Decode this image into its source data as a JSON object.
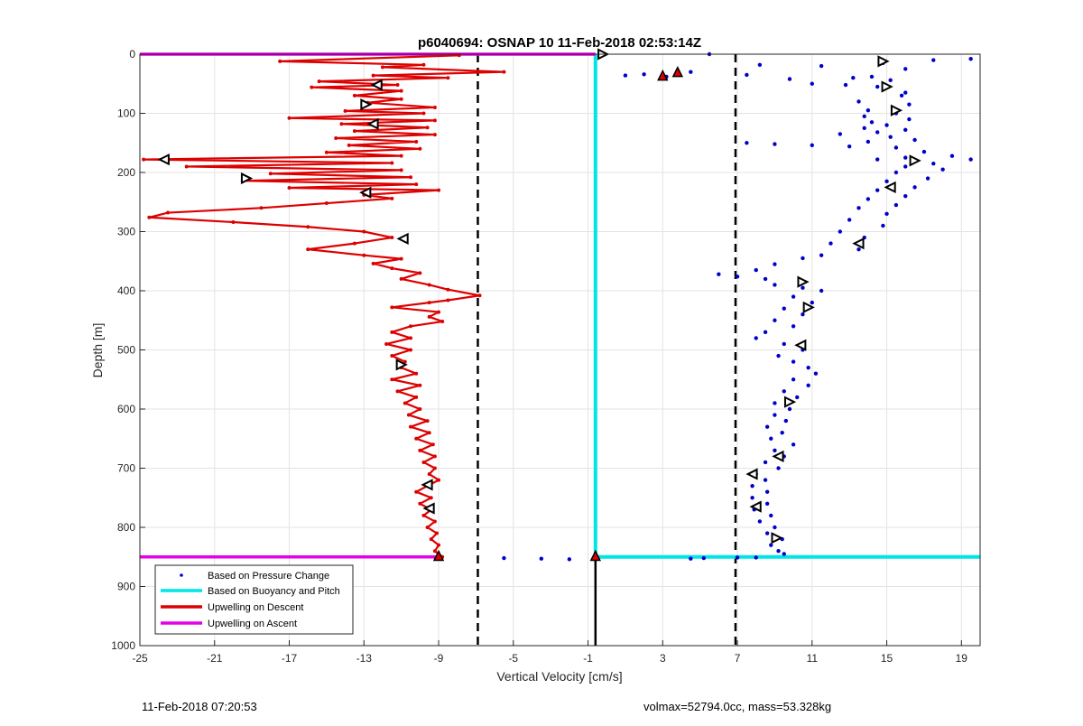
{
  "chart_data": {
    "type": "line",
    "title": "p6040694: OSNAP 10 11-Feb-2018 02:53:14Z",
    "xlabel": "Vertical Velocity [cm/s]",
    "ylabel": "Depth [m]",
    "xlim": [
      -25,
      20
    ],
    "ylim": [
      0,
      1000
    ],
    "y_reversed": true,
    "grid": true,
    "xticks": [
      -25,
      -21,
      -17,
      -13,
      -9,
      -5,
      -1,
      3,
      7,
      11,
      15,
      19
    ],
    "yticks": [
      0,
      100,
      200,
      300,
      400,
      500,
      600,
      700,
      800,
      900,
      1000
    ],
    "legend_position": "bottom-left",
    "legend": [
      {
        "label": "Based on Pressure Change",
        "color": "#0000cc",
        "style": "dots"
      },
      {
        "label": "Based on Buoyancy and Pitch",
        "color": "#00e5e5",
        "style": "line"
      },
      {
        "label": "Upwelling on Descent",
        "color": "#dd0000",
        "style": "line"
      },
      {
        "label": "Upwelling on Ascent",
        "color": "#e600e6",
        "style": "line"
      }
    ],
    "reference_lines": {
      "dashed_x": [
        -6.9,
        6.9
      ],
      "zero_x": -0.6,
      "bottom_depth": 850,
      "ascent_top_depth": 0
    },
    "series": [
      {
        "name": "Upwelling on Descent",
        "color": "#dd0000",
        "points": [
          [
            -7.9,
            2
          ],
          [
            -17.5,
            12
          ],
          [
            -9.8,
            18
          ],
          [
            -12.0,
            22
          ],
          [
            -5.5,
            30
          ],
          [
            -12.5,
            36
          ],
          [
            -8.5,
            40
          ],
          [
            -15.4,
            46
          ],
          [
            -11.2,
            52
          ],
          [
            -15.8,
            56
          ],
          [
            -11.0,
            62
          ],
          [
            -13.5,
            70
          ],
          [
            -11.0,
            76
          ],
          [
            -12.8,
            82
          ],
          [
            -9.2,
            90
          ],
          [
            -14.0,
            96
          ],
          [
            -9.8,
            100
          ],
          [
            -17.0,
            108
          ],
          [
            -9.2,
            112
          ],
          [
            -14.2,
            118
          ],
          [
            -9.6,
            124
          ],
          [
            -13.5,
            130
          ],
          [
            -9.2,
            136
          ],
          [
            -14.5,
            142
          ],
          [
            -10.2,
            148
          ],
          [
            -13.8,
            154
          ],
          [
            -10.0,
            160
          ],
          [
            -15.0,
            166
          ],
          [
            -11.0,
            172
          ],
          [
            -24.8,
            178
          ],
          [
            -11.5,
            184
          ],
          [
            -22.5,
            190
          ],
          [
            -11.0,
            196
          ],
          [
            -18.0,
            202
          ],
          [
            -10.5,
            208
          ],
          [
            -19.5,
            214
          ],
          [
            -10.2,
            220
          ],
          [
            -17.0,
            226
          ],
          [
            -9.0,
            230
          ],
          [
            -13.0,
            238
          ],
          [
            -11.5,
            244
          ],
          [
            -15.0,
            252
          ],
          [
            -18.5,
            260
          ],
          [
            -23.5,
            268
          ],
          [
            -24.5,
            276
          ],
          [
            -20.0,
            284
          ],
          [
            -16.0,
            292
          ],
          [
            -13.0,
            300
          ],
          [
            -11.5,
            310
          ],
          [
            -13.5,
            320
          ],
          [
            -16.0,
            330
          ],
          [
            -13.0,
            340
          ],
          [
            -11.0,
            346
          ],
          [
            -12.5,
            354
          ],
          [
            -11.5,
            362
          ],
          [
            -10.0,
            370
          ],
          [
            -11.0,
            380
          ],
          [
            -9.5,
            390
          ],
          [
            -8.5,
            398
          ],
          [
            -6.8,
            408
          ],
          [
            -8.5,
            416
          ],
          [
            -9.5,
            420
          ],
          [
            -11.5,
            428
          ],
          [
            -9.0,
            436
          ],
          [
            -9.5,
            444
          ],
          [
            -8.8,
            452
          ],
          [
            -10.5,
            460
          ],
          [
            -11.5,
            470
          ],
          [
            -10.5,
            480
          ],
          [
            -11.8,
            490
          ],
          [
            -10.5,
            500
          ],
          [
            -11.5,
            510
          ],
          [
            -10.8,
            520
          ],
          [
            -11.0,
            530
          ],
          [
            -10.2,
            540
          ],
          [
            -11.5,
            550
          ],
          [
            -10.0,
            560
          ],
          [
            -11.2,
            570
          ],
          [
            -10.2,
            580
          ],
          [
            -10.8,
            590
          ],
          [
            -10.0,
            600
          ],
          [
            -10.6,
            610
          ],
          [
            -9.6,
            620
          ],
          [
            -10.5,
            630
          ],
          [
            -9.5,
            640
          ],
          [
            -10.2,
            650
          ],
          [
            -9.3,
            660
          ],
          [
            -10.0,
            670
          ],
          [
            -9.2,
            680
          ],
          [
            -9.8,
            690
          ],
          [
            -9.2,
            700
          ],
          [
            -9.5,
            710
          ],
          [
            -9.0,
            720
          ],
          [
            -9.6,
            730
          ],
          [
            -10.2,
            740
          ],
          [
            -9.4,
            750
          ],
          [
            -10.0,
            760
          ],
          [
            -9.4,
            770
          ],
          [
            -9.8,
            780
          ],
          [
            -9.2,
            790
          ],
          [
            -9.6,
            800
          ],
          [
            -9.1,
            810
          ],
          [
            -9.4,
            820
          ],
          [
            -9.0,
            830
          ],
          [
            -9.2,
            840
          ],
          [
            -8.8,
            850
          ]
        ]
      },
      {
        "name": "Based on Pressure Change",
        "color": "#0000cc",
        "points": [
          [
            5.5,
            0
          ],
          [
            19.5,
            8
          ],
          [
            14.8,
            15
          ],
          [
            17.5,
            10
          ],
          [
            8.2,
            18
          ],
          [
            16.0,
            25
          ],
          [
            11.5,
            20
          ],
          [
            2.0,
            34
          ],
          [
            1.0,
            36
          ],
          [
            3.2,
            38
          ],
          [
            4.5,
            30
          ],
          [
            9.8,
            42
          ],
          [
            13.2,
            40
          ],
          [
            15.2,
            44
          ],
          [
            7.5,
            35
          ],
          [
            14.2,
            38
          ],
          [
            11.0,
            50
          ],
          [
            14.5,
            55
          ],
          [
            16.0,
            65
          ],
          [
            12.8,
            52
          ],
          [
            15.8,
            70
          ],
          [
            13.5,
            80
          ],
          [
            16.2,
            85
          ],
          [
            14.0,
            95
          ],
          [
            15.5,
            100
          ],
          [
            13.8,
            105
          ],
          [
            16.2,
            110
          ],
          [
            14.2,
            115
          ],
          [
            15.0,
            120
          ],
          [
            13.8,
            125
          ],
          [
            16.0,
            128
          ],
          [
            14.5,
            132
          ],
          [
            12.5,
            135
          ],
          [
            15.2,
            140
          ],
          [
            16.5,
            145
          ],
          [
            14.0,
            148
          ],
          [
            7.5,
            150
          ],
          [
            9.0,
            152
          ],
          [
            11.0,
            154
          ],
          [
            13.0,
            156
          ],
          [
            15.5,
            158
          ],
          [
            17.0,
            165
          ],
          [
            18.5,
            172
          ],
          [
            19.5,
            178
          ],
          [
            16.0,
            175
          ],
          [
            14.5,
            178
          ],
          [
            17.5,
            185
          ],
          [
            16.0,
            190
          ],
          [
            18.0,
            195
          ],
          [
            15.5,
            200
          ],
          [
            17.2,
            210
          ],
          [
            15.0,
            215
          ],
          [
            16.5,
            225
          ],
          [
            14.5,
            230
          ],
          [
            16.0,
            240
          ],
          [
            14.0,
            245
          ],
          [
            15.5,
            255
          ],
          [
            13.5,
            260
          ],
          [
            15.0,
            270
          ],
          [
            13.0,
            280
          ],
          [
            14.8,
            290
          ],
          [
            12.5,
            300
          ],
          [
            13.8,
            310
          ],
          [
            12.0,
            320
          ],
          [
            13.5,
            330
          ],
          [
            11.5,
            340
          ],
          [
            10.5,
            345
          ],
          [
            9.0,
            355
          ],
          [
            8.0,
            365
          ],
          [
            6.0,
            372
          ],
          [
            7.0,
            376
          ],
          [
            8.5,
            380
          ],
          [
            9.0,
            390
          ],
          [
            10.5,
            395
          ],
          [
            11.5,
            400
          ],
          [
            10.0,
            410
          ],
          [
            11.0,
            420
          ],
          [
            9.5,
            430
          ],
          [
            10.5,
            440
          ],
          [
            9.0,
            450
          ],
          [
            10.0,
            460
          ],
          [
            8.5,
            470
          ],
          [
            8.0,
            480
          ],
          [
            9.5,
            490
          ],
          [
            10.5,
            500
          ],
          [
            9.2,
            510
          ],
          [
            10.0,
            520
          ],
          [
            10.8,
            530
          ],
          [
            11.2,
            540
          ],
          [
            10.0,
            550
          ],
          [
            10.8,
            560
          ],
          [
            9.5,
            570
          ],
          [
            10.2,
            580
          ],
          [
            9.0,
            590
          ],
          [
            9.8,
            600
          ],
          [
            9.0,
            610
          ],
          [
            9.6,
            620
          ],
          [
            8.6,
            630
          ],
          [
            9.4,
            640
          ],
          [
            8.8,
            650
          ],
          [
            10.0,
            660
          ],
          [
            9.0,
            670
          ],
          [
            9.5,
            680
          ],
          [
            8.5,
            690
          ],
          [
            9.2,
            700
          ],
          [
            8.0,
            710
          ],
          [
            8.5,
            720
          ],
          [
            7.8,
            730
          ],
          [
            8.6,
            740
          ],
          [
            7.8,
            750
          ],
          [
            8.6,
            760
          ],
          [
            7.9,
            770
          ],
          [
            8.8,
            780
          ],
          [
            8.2,
            790
          ],
          [
            9.0,
            800
          ],
          [
            8.6,
            810
          ],
          [
            9.4,
            820
          ],
          [
            8.8,
            830
          ],
          [
            9.2,
            840
          ],
          [
            9.5,
            845
          ],
          [
            -9.0,
            850
          ],
          [
            -5.5,
            852
          ],
          [
            -3.5,
            853
          ],
          [
            -2.0,
            854
          ],
          [
            4.5,
            853
          ],
          [
            5.2,
            852
          ],
          [
            7.0,
            851
          ],
          [
            8.0,
            851
          ]
        ]
      },
      {
        "name": "Based on Buoyancy and Pitch",
        "color": "#00e5e5",
        "points": [
          [
            -0.6,
            0
          ],
          [
            -0.6,
            850
          ],
          [
            20.0,
            850
          ]
        ]
      },
      {
        "name": "Upwelling on Ascent",
        "color": "#e600e6",
        "points": [
          [
            -25,
            0
          ],
          [
            -0.6,
            0
          ]
        ]
      }
    ],
    "triangle_markers": [
      {
        "x": -0.2,
        "y": 0,
        "dir": "right"
      },
      {
        "x": 14.8,
        "y": 12,
        "dir": "right"
      },
      {
        "x": 15.0,
        "y": 55,
        "dir": "right"
      },
      {
        "x": -12.3,
        "y": 52,
        "dir": "left"
      },
      {
        "x": -12.9,
        "y": 85,
        "dir": "right"
      },
      {
        "x": 15.5,
        "y": 95,
        "dir": "right"
      },
      {
        "x": -12.5,
        "y": 118,
        "dir": "left"
      },
      {
        "x": -23.7,
        "y": 178,
        "dir": "left"
      },
      {
        "x": 16.5,
        "y": 180,
        "dir": "right"
      },
      {
        "x": -19.3,
        "y": 210,
        "dir": "right"
      },
      {
        "x": -12.9,
        "y": 234,
        "dir": "left"
      },
      {
        "x": 15.2,
        "y": 225,
        "dir": "left"
      },
      {
        "x": -10.9,
        "y": 312,
        "dir": "left"
      },
      {
        "x": 13.5,
        "y": 320,
        "dir": "left"
      },
      {
        "x": 10.5,
        "y": 385,
        "dir": "right"
      },
      {
        "x": 10.8,
        "y": 428,
        "dir": "right"
      },
      {
        "x": 10.4,
        "y": 492,
        "dir": "left"
      },
      {
        "x": -11.0,
        "y": 525,
        "dir": "right"
      },
      {
        "x": 9.8,
        "y": 588,
        "dir": "right"
      },
      {
        "x": 9.2,
        "y": 680,
        "dir": "left"
      },
      {
        "x": 7.8,
        "y": 710,
        "dir": "left"
      },
      {
        "x": -9.6,
        "y": 728,
        "dir": "left"
      },
      {
        "x": -9.5,
        "y": 768,
        "dir": "left"
      },
      {
        "x": 8.0,
        "y": 765,
        "dir": "left"
      },
      {
        "x": 9.1,
        "y": 818,
        "dir": "right"
      }
    ],
    "up_markers": [
      {
        "x": -9.0,
        "y": 848,
        "fill": "#dd0000"
      },
      {
        "x": 3.0,
        "y": 36,
        "fill": "#dd0000"
      },
      {
        "x": 3.8,
        "y": 30,
        "fill": "#dd0000"
      },
      {
        "x": -0.6,
        "y": 848,
        "fill": "#dd0000"
      }
    ]
  },
  "footer": {
    "left": "11-Feb-2018 07:20:53",
    "right": "volmax=52794.0cc, mass=53.328kg"
  }
}
